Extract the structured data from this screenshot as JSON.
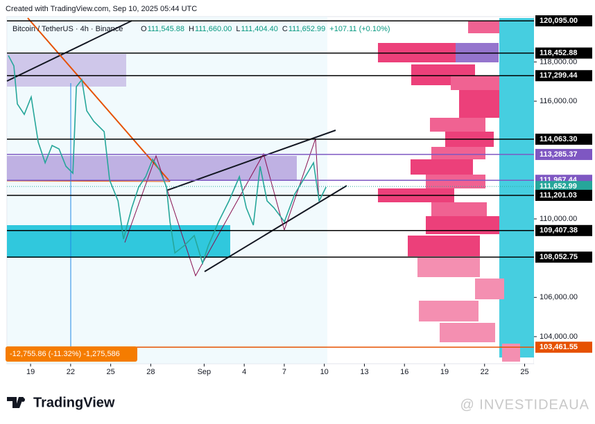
{
  "header": "Created with TradingView.com, Sep 10, 2025 05:44 UTC",
  "symbol": "Bitcoin / TetherUS · 4h · Binance",
  "ohlc": [
    {
      "key": "O",
      "value": "111,545.88"
    },
    {
      "key": "H",
      "value": "111,660.00"
    },
    {
      "key": "L",
      "value": "111,404.40"
    },
    {
      "key": "C",
      "value": "111,652.99"
    }
  ],
  "change": "+107.11 (+0.10%)",
  "measure": "-12,755.86 (-11.32%) -1,275,586",
  "logo": "TradingView",
  "watermark": "@ INVESTIDEAUA",
  "chart_data": {
    "type": "line",
    "color": "#26a69a",
    "x": [
      -1.66,
      -1.25,
      -0.99,
      -0.47,
      0.05,
      0.57,
      1.09,
      1.61,
      2.13,
      2.65,
      3.17,
      3.43,
      3.84,
      4.21,
      4.73,
      5.51,
      5.92,
      6.55,
      6.96,
      7.58,
      8.1,
      8.62,
      9.14,
      9.66,
      10.18,
      10.44,
      10.81,
      11.48,
      12.26,
      12.88,
      13.3,
      14.08,
      14.86,
      15.64,
      16.16,
      16.68,
      17.19,
      17.71,
      18.23,
      19.01,
      19.79,
      20.57,
      21.19,
      21.61,
      22.13
    ],
    "values": [
      118330,
      117800,
      115859,
      115329,
      116212,
      113917,
      112858,
      113741,
      113564,
      112682,
      112329,
      116741,
      117094,
      115506,
      114976,
      114447,
      111976,
      110917,
      108976,
      110564,
      111623,
      112153,
      113035,
      112506,
      111623,
      109858,
      108270,
      108623,
      109152,
      107740,
      108623,
      109858,
      110917,
      112153,
      110564,
      109681,
      112682,
      110917,
      110564,
      109858,
      111270,
      112153,
      112858,
      110917,
      111623
    ],
    "xlim": [
      -1.77,
      37.7
    ],
    "ylim": [
      102620,
      120380
    ],
    "xticks": [
      {
        "value": 0,
        "label": "19"
      },
      {
        "value": 3,
        "label": "22"
      },
      {
        "value": 6,
        "label": "25"
      },
      {
        "value": 9,
        "label": "28"
      },
      {
        "value": 13,
        "label": "Sep"
      },
      {
        "value": 16,
        "label": "4"
      },
      {
        "value": 19,
        "label": "7"
      },
      {
        "value": 22,
        "label": "10"
      },
      {
        "value": 25,
        "label": "13"
      },
      {
        "value": 28,
        "label": "16"
      },
      {
        "value": 31,
        "label": "19"
      },
      {
        "value": 34,
        "label": "22"
      },
      {
        "value": 37,
        "label": "25"
      }
    ],
    "yticks": [
      {
        "value": 104000,
        "label": "104,000.00"
      },
      {
        "value": 106000,
        "label": "106,000.00"
      },
      {
        "value": 110000,
        "label": "110,000.00"
      },
      {
        "value": 116000,
        "label": "116,000.00"
      },
      {
        "value": 118000,
        "label": "118,000.00"
      }
    ],
    "levels": [
      {
        "value": 120095,
        "label": "120,095.00",
        "color": "#000000"
      },
      {
        "value": 118452.88,
        "label": "118,452.88",
        "color": "#000000"
      },
      {
        "value": 117299.44,
        "label": "117,299.44",
        "color": "#000000"
      },
      {
        "value": 114063.3,
        "label": "114,063.30",
        "color": "#000000"
      },
      {
        "value": 113285.37,
        "label": "113,285.37",
        "color": "#7e57c2"
      },
      {
        "value": 111967.44,
        "label": "111,967.44",
        "color": "#7e57c2"
      },
      {
        "value": 111652.99,
        "label": "111,652.99",
        "color": "#26a69a"
      },
      {
        "value": 111201.03,
        "label": "111,201.03",
        "color": "#000000"
      },
      {
        "value": 109407.38,
        "label": "109,407.38",
        "color": "#000000"
      },
      {
        "value": 108052.75,
        "label": "108,052.75",
        "color": "#000000"
      },
      {
        "value": 103461.55,
        "label": "103,461.55",
        "color": "#e65100"
      }
    ]
  }
}
